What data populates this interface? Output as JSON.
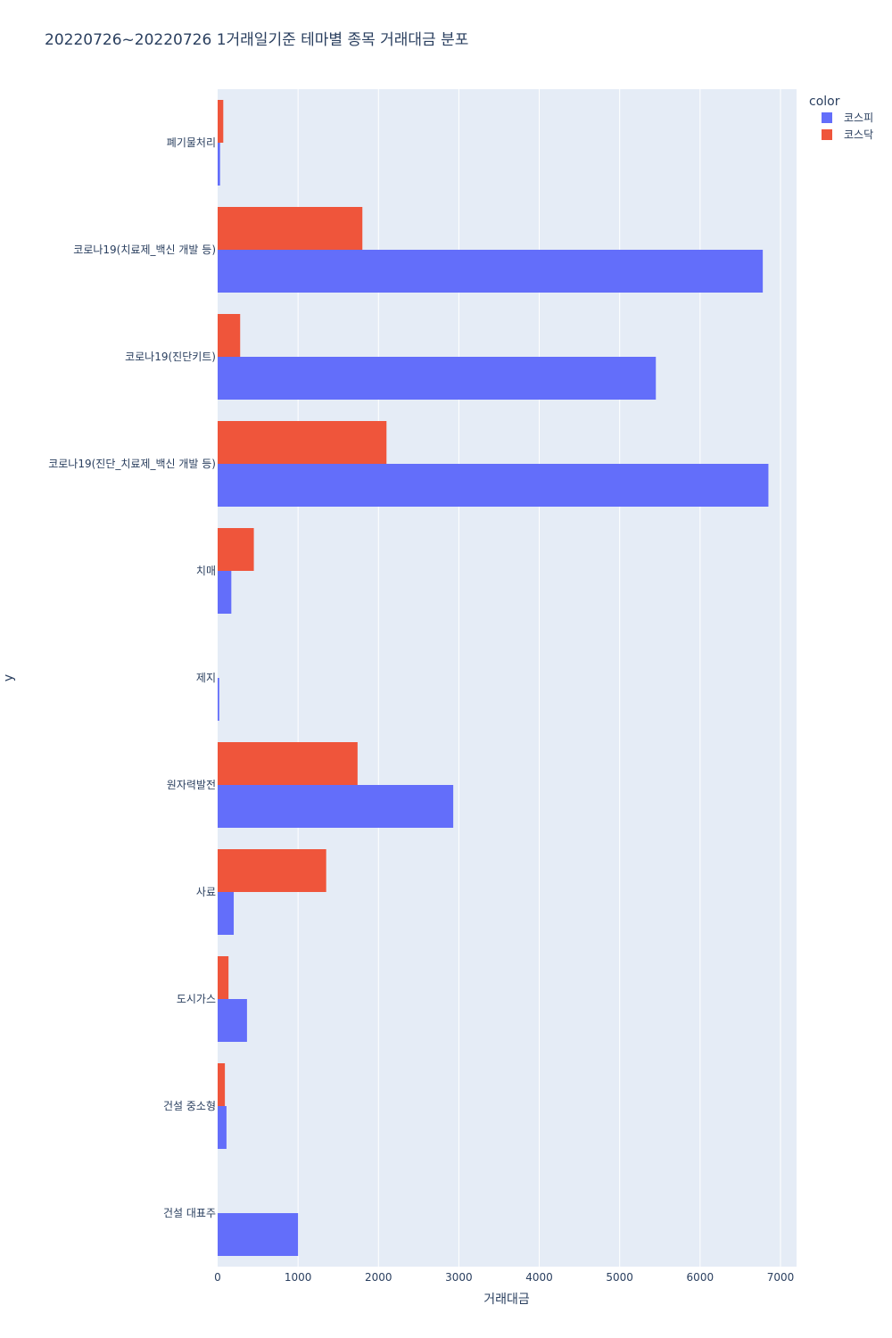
{
  "chart_data": {
    "type": "bar",
    "orientation": "horizontal",
    "barmode": "group",
    "title": "20220726~20220726 1거래일기준 테마별 종목 거래대금 분포",
    "xlabel": "거래대금",
    "ylabel": "y",
    "xlim": [
      0,
      7200
    ],
    "xticks": [
      0,
      1000,
      2000,
      3000,
      4000,
      5000,
      6000,
      7000
    ],
    "grid": true,
    "legend": {
      "title": "color",
      "placement": "top-right"
    },
    "categories": [
      "폐기물처리",
      "코로나19(치료제_백신 개발 등)",
      "코로나19(진단키트)",
      "코로나19(진단_치료제_백신 개발 등)",
      "치매",
      "제지",
      "원자력발전",
      "사료",
      "도시가스",
      "건설 중소형",
      "건설 대표주"
    ],
    "series": [
      {
        "name": "코스피",
        "color": "#636efa",
        "values": [
          30,
          6780,
          5450,
          6850,
          170,
          20,
          2930,
          200,
          365,
          110,
          1000
        ]
      },
      {
        "name": "코스닥",
        "color": "#ef553b",
        "values": [
          70,
          1800,
          280,
          2100,
          450,
          0,
          1740,
          1350,
          135,
          90,
          0
        ]
      }
    ]
  }
}
